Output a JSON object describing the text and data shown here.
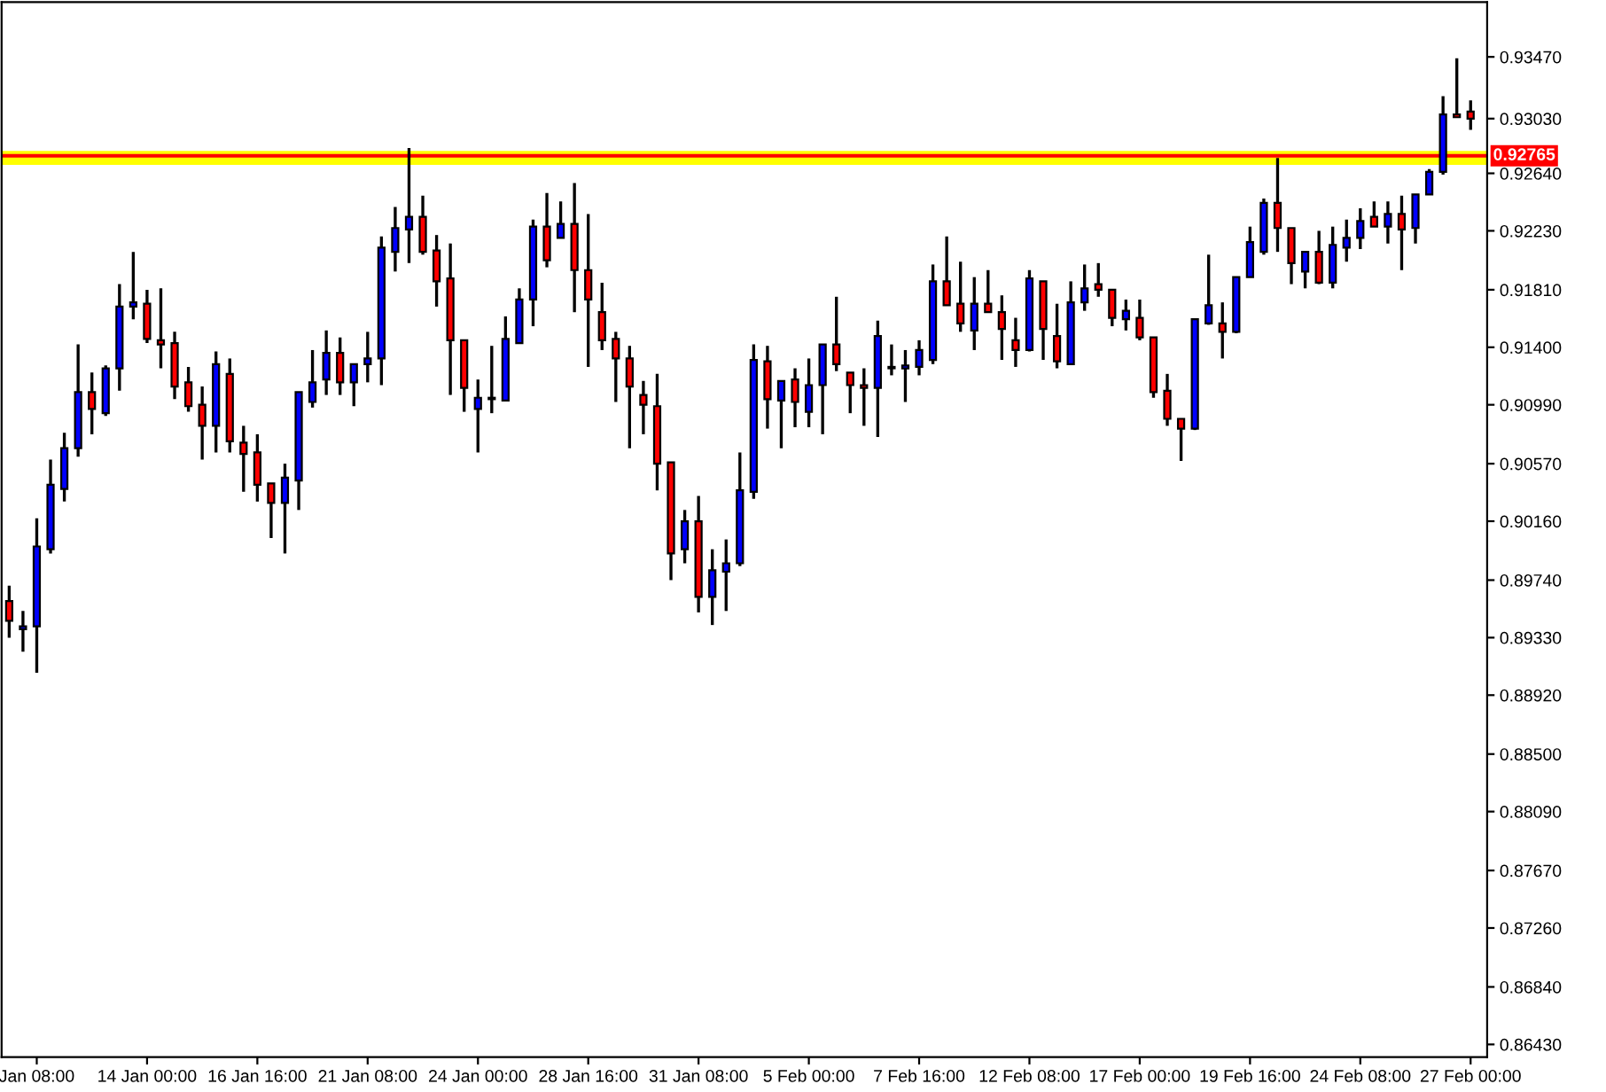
{
  "chart_data": {
    "type": "candlestick",
    "categories": [
      null,
      null,
      "Jan 08:00",
      null,
      null,
      null,
      null,
      null,
      null,
      null,
      "14 Jan 00:00",
      null,
      null,
      null,
      null,
      null,
      null,
      null,
      "16 Jan 16:00",
      null,
      null,
      null,
      null,
      null,
      null,
      null,
      "21 Jan 08:00",
      null,
      null,
      null,
      null,
      null,
      null,
      null,
      "24 Jan 00:00",
      null,
      null,
      null,
      null,
      null,
      null,
      null,
      "28 Jan 16:00",
      null,
      null,
      null,
      null,
      null,
      null,
      null,
      "31 Jan 08:00",
      null,
      null,
      null,
      null,
      null,
      null,
      null,
      "5 Feb 00:00",
      null,
      null,
      null,
      null,
      null,
      null,
      null,
      "7 Feb 16:00",
      null,
      null,
      null,
      null,
      null,
      null,
      null,
      "12 Feb 08:00",
      null,
      null,
      null,
      null,
      null,
      null,
      null,
      "17 Feb 00:00",
      null,
      null,
      null,
      null,
      null,
      null,
      null,
      "19 Feb 16:00",
      null,
      null,
      null,
      null,
      null,
      null,
      null,
      "24 Feb 08:00",
      null,
      null,
      null,
      null,
      null,
      null,
      null,
      "27 Feb 00:00"
    ],
    "ohlc": [
      [
        0.8959,
        0.897,
        0.8933,
        0.8945
      ],
      [
        0.8939,
        0.8952,
        0.8923,
        0.8941
      ],
      [
        0.8941,
        0.9018,
        0.8908,
        0.8998
      ],
      [
        0.8996,
        0.906,
        0.8993,
        0.9042
      ],
      [
        0.9039,
        0.9079,
        0.903,
        0.9068
      ],
      [
        0.9068,
        0.9142,
        0.9062,
        0.9108
      ],
      [
        0.9108,
        0.9122,
        0.9078,
        0.9096
      ],
      [
        0.9093,
        0.9127,
        0.9091,
        0.9125
      ],
      [
        0.9125,
        0.9185,
        0.9109,
        0.9169
      ],
      [
        0.9169,
        0.9208,
        0.916,
        0.9172
      ],
      [
        0.9171,
        0.9181,
        0.9143,
        0.9146
      ],
      [
        0.9145,
        0.9182,
        0.9125,
        0.9142
      ],
      [
        0.9143,
        0.9151,
        0.9103,
        0.9112
      ],
      [
        0.9115,
        0.9126,
        0.9094,
        0.9098
      ],
      [
        0.9099,
        0.9112,
        0.906,
        0.9084
      ],
      [
        0.9084,
        0.9137,
        0.9065,
        0.9128
      ],
      [
        0.9121,
        0.9132,
        0.9065,
        0.9073
      ],
      [
        0.9072,
        0.9084,
        0.9037,
        0.9064
      ],
      [
        0.9065,
        0.9078,
        0.903,
        0.9042
      ],
      [
        0.9043,
        0.9043,
        0.9004,
        0.9029
      ],
      [
        0.9029,
        0.9057,
        0.8993,
        0.9047
      ],
      [
        0.9045,
        0.9108,
        0.9024,
        0.9108
      ],
      [
        0.9101,
        0.9138,
        0.9097,
        0.9115
      ],
      [
        0.9117,
        0.9152,
        0.9106,
        0.9136
      ],
      [
        0.9136,
        0.9147,
        0.9106,
        0.9115
      ],
      [
        0.9115,
        0.9128,
        0.9098,
        0.9128
      ],
      [
        0.9128,
        0.9151,
        0.9115,
        0.9132
      ],
      [
        0.9132,
        0.9219,
        0.9113,
        0.9211
      ],
      [
        0.9208,
        0.924,
        0.9194,
        0.9225
      ],
      [
        0.9224,
        0.9282,
        0.92,
        0.9233
      ],
      [
        0.9233,
        0.9248,
        0.9206,
        0.9208
      ],
      [
        0.9209,
        0.922,
        0.9169,
        0.9187
      ],
      [
        0.9189,
        0.9214,
        0.9106,
        0.9145
      ],
      [
        0.9145,
        0.9145,
        0.9094,
        0.9111
      ],
      [
        0.9096,
        0.9117,
        0.9065,
        0.9104
      ],
      [
        0.9104,
        0.9141,
        0.9093,
        0.9103
      ],
      [
        0.9102,
        0.9162,
        0.9102,
        0.9146
      ],
      [
        0.9143,
        0.9182,
        0.9143,
        0.9174
      ],
      [
        0.9174,
        0.9231,
        0.9155,
        0.9226
      ],
      [
        0.9226,
        0.925,
        0.9197,
        0.9202
      ],
      [
        0.9218,
        0.9244,
        0.9218,
        0.9228
      ],
      [
        0.9228,
        0.9257,
        0.9165,
        0.9195
      ],
      [
        0.9195,
        0.9235,
        0.9126,
        0.9174
      ],
      [
        0.9165,
        0.9186,
        0.9138,
        0.9145
      ],
      [
        0.9146,
        0.9151,
        0.9101,
        0.9132
      ],
      [
        0.9132,
        0.9141,
        0.9068,
        0.9112
      ],
      [
        0.9106,
        0.9116,
        0.9078,
        0.9099
      ],
      [
        0.9098,
        0.9121,
        0.9038,
        0.9057
      ],
      [
        0.9058,
        0.9058,
        0.8974,
        0.8993
      ],
      [
        0.8996,
        0.9024,
        0.8986,
        0.9016
      ],
      [
        0.9016,
        0.9034,
        0.8951,
        0.8962
      ],
      [
        0.8962,
        0.8996,
        0.8942,
        0.8981
      ],
      [
        0.898,
        0.9003,
        0.8952,
        0.8986
      ],
      [
        0.8986,
        0.9065,
        0.8984,
        0.9038
      ],
      [
        0.9037,
        0.9142,
        0.9032,
        0.9131
      ],
      [
        0.913,
        0.9141,
        0.9082,
        0.9103
      ],
      [
        0.9102,
        0.9116,
        0.9068,
        0.9116
      ],
      [
        0.9117,
        0.9125,
        0.9083,
        0.9101
      ],
      [
        0.9094,
        0.9132,
        0.9083,
        0.9113
      ],
      [
        0.9113,
        0.9142,
        0.9078,
        0.9142
      ],
      [
        0.9142,
        0.9176,
        0.9123,
        0.9128
      ],
      [
        0.9122,
        0.9122,
        0.9093,
        0.9113
      ],
      [
        0.9113,
        0.9125,
        0.9084,
        0.9111
      ],
      [
        0.9111,
        0.9159,
        0.9076,
        0.9148
      ],
      [
        0.9126,
        0.9142,
        0.912,
        0.9125
      ],
      [
        0.9125,
        0.9138,
        0.9101,
        0.9127
      ],
      [
        0.9126,
        0.9145,
        0.912,
        0.9138
      ],
      [
        0.9131,
        0.9199,
        0.9128,
        0.9187
      ],
      [
        0.9187,
        0.9219,
        0.917,
        0.917
      ],
      [
        0.9171,
        0.9201,
        0.9151,
        0.9157
      ],
      [
        0.9152,
        0.919,
        0.9138,
        0.9171
      ],
      [
        0.9171,
        0.9195,
        0.9165,
        0.9165
      ],
      [
        0.9165,
        0.9177,
        0.9131,
        0.9153
      ],
      [
        0.9145,
        0.9161,
        0.9126,
        0.9138
      ],
      [
        0.9138,
        0.9195,
        0.9137,
        0.9189
      ],
      [
        0.9187,
        0.9187,
        0.9131,
        0.9153
      ],
      [
        0.9148,
        0.9171,
        0.9125,
        0.913
      ],
      [
        0.9128,
        0.9187,
        0.9128,
        0.9172
      ],
      [
        0.9172,
        0.9199,
        0.9166,
        0.9182
      ],
      [
        0.9185,
        0.92,
        0.9176,
        0.9181
      ],
      [
        0.9181,
        0.9181,
        0.9155,
        0.9161
      ],
      [
        0.916,
        0.9174,
        0.9152,
        0.9166
      ],
      [
        0.9161,
        0.9174,
        0.9145,
        0.9147
      ],
      [
        0.9147,
        0.9147,
        0.9104,
        0.9108
      ],
      [
        0.9109,
        0.9121,
        0.9084,
        0.9089
      ],
      [
        0.9089,
        0.9089,
        0.9059,
        0.9082
      ],
      [
        0.9082,
        0.916,
        0.9081,
        0.916
      ],
      [
        0.9157,
        0.9206,
        0.9156,
        0.917
      ],
      [
        0.9157,
        0.9172,
        0.9132,
        0.9151
      ],
      [
        0.9151,
        0.919,
        0.915,
        0.919
      ],
      [
        0.919,
        0.9226,
        0.919,
        0.9215
      ],
      [
        0.9208,
        0.9246,
        0.9206,
        0.9243
      ],
      [
        0.9243,
        0.9275,
        0.9208,
        0.9225
      ],
      [
        0.9225,
        0.9225,
        0.9185,
        0.92
      ],
      [
        0.9194,
        0.9208,
        0.9182,
        0.9208
      ],
      [
        0.9208,
        0.9223,
        0.9185,
        0.9186
      ],
      [
        0.9186,
        0.9226,
        0.9182,
        0.9213
      ],
      [
        0.9211,
        0.9231,
        0.9201,
        0.9218
      ],
      [
        0.9218,
        0.9239,
        0.921,
        0.923
      ],
      [
        0.9233,
        0.9244,
        0.9226,
        0.9226
      ],
      [
        0.9226,
        0.9244,
        0.9214,
        0.9235
      ],
      [
        0.9235,
        0.9248,
        0.9195,
        0.9224
      ],
      [
        0.9225,
        0.9249,
        0.9214,
        0.9249
      ],
      [
        0.9249,
        0.9267,
        0.9249,
        0.9265
      ],
      [
        0.9265,
        0.9319,
        0.9263,
        0.9306
      ],
      [
        0.9306,
        0.9346,
        0.9304,
        0.9304
      ],
      [
        0.9308,
        0.9316,
        0.9295,
        0.9303
      ]
    ],
    "colors": [
      "#ff0000",
      "#0000ff",
      "#0000ff",
      "#0000ff",
      "#0000ff",
      "#0000ff",
      "#ff0000",
      "#0000ff",
      "#0000ff",
      "#0000ff",
      "#ff0000",
      "#ff0000",
      "#ff0000",
      "#ff0000",
      "#ff0000",
      "#0000ff",
      "#ff0000",
      "#ff0000",
      "#ff0000",
      "#ff0000",
      "#0000ff",
      "#0000ff",
      "#0000ff",
      "#0000ff",
      "#ff0000",
      "#0000ff",
      "#0000ff",
      "#0000ff",
      "#0000ff",
      "#0000ff",
      "#ff0000",
      "#ff0000",
      "#ff0000",
      "#ff0000",
      "#0000ff",
      "#ff0000",
      "#0000ff",
      "#0000ff",
      "#0000ff",
      "#ff0000",
      "#0000ff",
      "#ff0000",
      "#ff0000",
      "#ff0000",
      "#ff0000",
      "#ff0000",
      "#ff0000",
      "#ff0000",
      "#ff0000",
      "#0000ff",
      "#ff0000",
      "#0000ff",
      "#0000ff",
      "#0000ff",
      "#0000ff",
      "#ff0000",
      "#0000ff",
      "#ff0000",
      "#0000ff",
      "#0000ff",
      "#ff0000",
      "#ff0000",
      "#ff0000",
      "#0000ff",
      "#ff0000",
      "#0000ff",
      "#0000ff",
      "#0000ff",
      "#ff0000",
      "#ff0000",
      "#0000ff",
      "#ff0000",
      "#ff0000",
      "#ff0000",
      "#0000ff",
      "#ff0000",
      "#ff0000",
      "#0000ff",
      "#0000ff",
      "#ff0000",
      "#ff0000",
      "#0000ff",
      "#ff0000",
      "#ff0000",
      "#ff0000",
      "#ff0000",
      "#0000ff",
      "#0000ff",
      "#ff0000",
      "#0000ff",
      "#0000ff",
      "#0000ff",
      "#ff0000",
      "#ff0000",
      "#0000ff",
      "#ff0000",
      "#0000ff",
      "#0000ff",
      "#0000ff",
      "#ff0000",
      "#0000ff",
      "#ff0000",
      "#0000ff",
      "#0000ff",
      "#0000ff",
      "#ff0000",
      "#ff0000"
    ],
    "ylim": [
      0.8634,
      0.9386
    ],
    "yticks": [
      {
        "value": 0.9347,
        "label": "0.93470"
      },
      {
        "value": 0.9303,
        "label": "0.93030"
      },
      {
        "value": 0.9264,
        "label": "0.92640"
      },
      {
        "value": 0.9223,
        "label": "0.92230"
      },
      {
        "value": 0.9181,
        "label": "0.91810"
      },
      {
        "value": 0.914,
        "label": "0.91400"
      },
      {
        "value": 0.9099,
        "label": "0.90990"
      },
      {
        "value": 0.9057,
        "label": "0.90570"
      },
      {
        "value": 0.9016,
        "label": "0.90160"
      },
      {
        "value": 0.8974,
        "label": "0.89740"
      },
      {
        "value": 0.8933,
        "label": "0.89330"
      },
      {
        "value": 0.8892,
        "label": "0.88920"
      },
      {
        "value": 0.885,
        "label": "0.88500"
      },
      {
        "value": 0.8809,
        "label": "0.88090"
      },
      {
        "value": 0.8767,
        "label": "0.87670"
      },
      {
        "value": 0.8726,
        "label": "0.87260"
      },
      {
        "value": 0.8684,
        "label": "0.86840"
      },
      {
        "value": 0.8643,
        "label": "0.86430"
      }
    ],
    "bands": [
      {
        "axis": "y",
        "from": 0.927,
        "to": 0.928,
        "color": "#ffff00"
      }
    ],
    "ref_lines": [
      {
        "axis": "y",
        "value": 0.92765,
        "label": "0.92765",
        "color": "#ff0000"
      }
    ],
    "grid": false,
    "legend": false
  }
}
